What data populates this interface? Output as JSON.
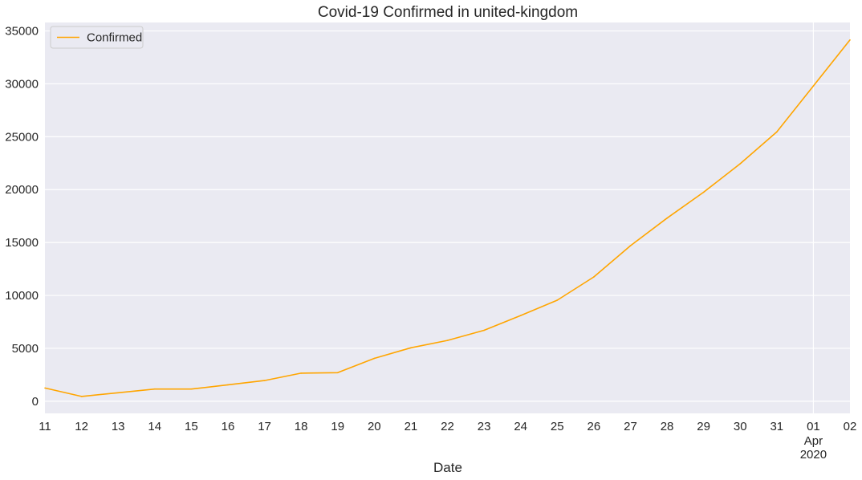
{
  "chart_data": {
    "type": "line",
    "title": "Covid-19 Confirmed in united-kingdom",
    "xlabel": "Date",
    "ylabel": "",
    "x": [
      "2020-03-11",
      "2020-03-12",
      "2020-03-13",
      "2020-03-14",
      "2020-03-15",
      "2020-03-16",
      "2020-03-17",
      "2020-03-18",
      "2020-03-19",
      "2020-03-20",
      "2020-03-21",
      "2020-03-22",
      "2020-03-23",
      "2020-03-24",
      "2020-03-25",
      "2020-03-26",
      "2020-03-27",
      "2020-03-28",
      "2020-03-29",
      "2020-03-30",
      "2020-03-31",
      "2020-04-01",
      "2020-04-02"
    ],
    "x_tick_labels": [
      "11",
      "12",
      "13",
      "14",
      "15",
      "16",
      "17",
      "18",
      "19",
      "20",
      "21",
      "22",
      "23",
      "24",
      "25",
      "26",
      "27",
      "28",
      "29",
      "30",
      "31",
      "01",
      "02"
    ],
    "x_secondary_labels": [
      "Apr",
      "2020"
    ],
    "series": [
      {
        "name": "Confirmed",
        "color": "#ffa500",
        "values": [
          1250,
          450,
          800,
          1150,
          1150,
          1550,
          1950,
          2650,
          2700,
          4050,
          5050,
          5750,
          6700,
          8100,
          9550,
          11750,
          14700,
          17300,
          19750,
          22450,
          25450,
          29800,
          34150
        ]
      }
    ],
    "y_ticks": [
      0,
      5000,
      10000,
      15000,
      20000,
      25000,
      30000,
      35000
    ],
    "ylim": [
      -1150,
      35800
    ],
    "grid": true,
    "background": "#eaeaf2",
    "legend": {
      "placement": "top-left",
      "entries": [
        "Confirmed"
      ]
    }
  }
}
